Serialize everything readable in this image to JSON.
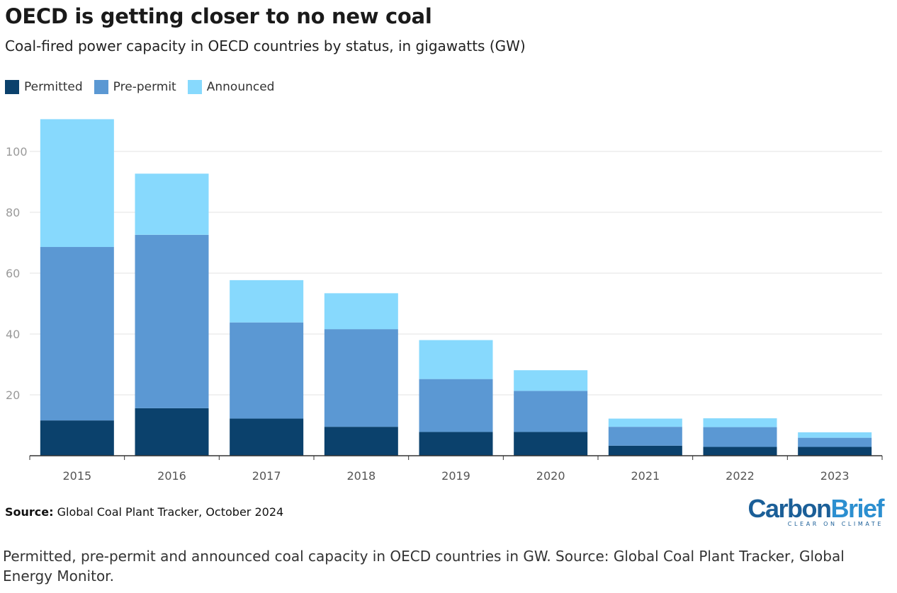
{
  "header": {
    "title": "OECD is getting closer to no new coal",
    "subtitle": "Coal-fired power capacity in OECD countries by status, in gigawatts (GW)"
  },
  "colors": {
    "permitted": "#0b416c",
    "pre_permit": "#5b98d3",
    "announced": "#87d9fd",
    "grid": "#e3e3e3",
    "axis": "#333333",
    "tick_text": "#9a9a9a"
  },
  "chart_data": {
    "type": "bar",
    "stacked": true,
    "title": "OECD is getting closer to no new coal",
    "subtitle": "Coal-fired power capacity in OECD countries by status, in gigawatts (GW)",
    "categories": [
      "2015",
      "2016",
      "2017",
      "2018",
      "2019",
      "2020",
      "2021",
      "2022",
      "2023"
    ],
    "series": [
      {
        "name": "Permitted",
        "values": [
          11.6,
          15.6,
          12.2,
          9.5,
          7.8,
          7.8,
          3.3,
          2.9,
          2.9
        ]
      },
      {
        "name": "Pre-permit",
        "values": [
          57.0,
          57.0,
          31.6,
          32.1,
          17.4,
          13.5,
          6.2,
          6.5,
          3.0
        ]
      },
      {
        "name": "Announced",
        "values": [
          42.0,
          20.1,
          13.9,
          11.8,
          12.8,
          6.8,
          2.7,
          2.9,
          1.8
        ]
      }
    ],
    "yticks": [
      20,
      40,
      60,
      80,
      100
    ],
    "ylim": [
      0,
      115
    ],
    "xlabel": "",
    "ylabel": "",
    "grid": true,
    "legend": "top-left"
  },
  "footer": {
    "source_label": "Source:",
    "source_text": "Global Coal Plant Tracker, October 2024",
    "logo_carbon": "Carbon",
    "logo_brief": "Brief",
    "logo_tagline": "CLEAR ON CLIMATE"
  },
  "caption": "Permitted, pre-permit and announced coal capacity in OECD countries in GW. Source: Global Coal Plant Tracker, Global Energy Monitor."
}
